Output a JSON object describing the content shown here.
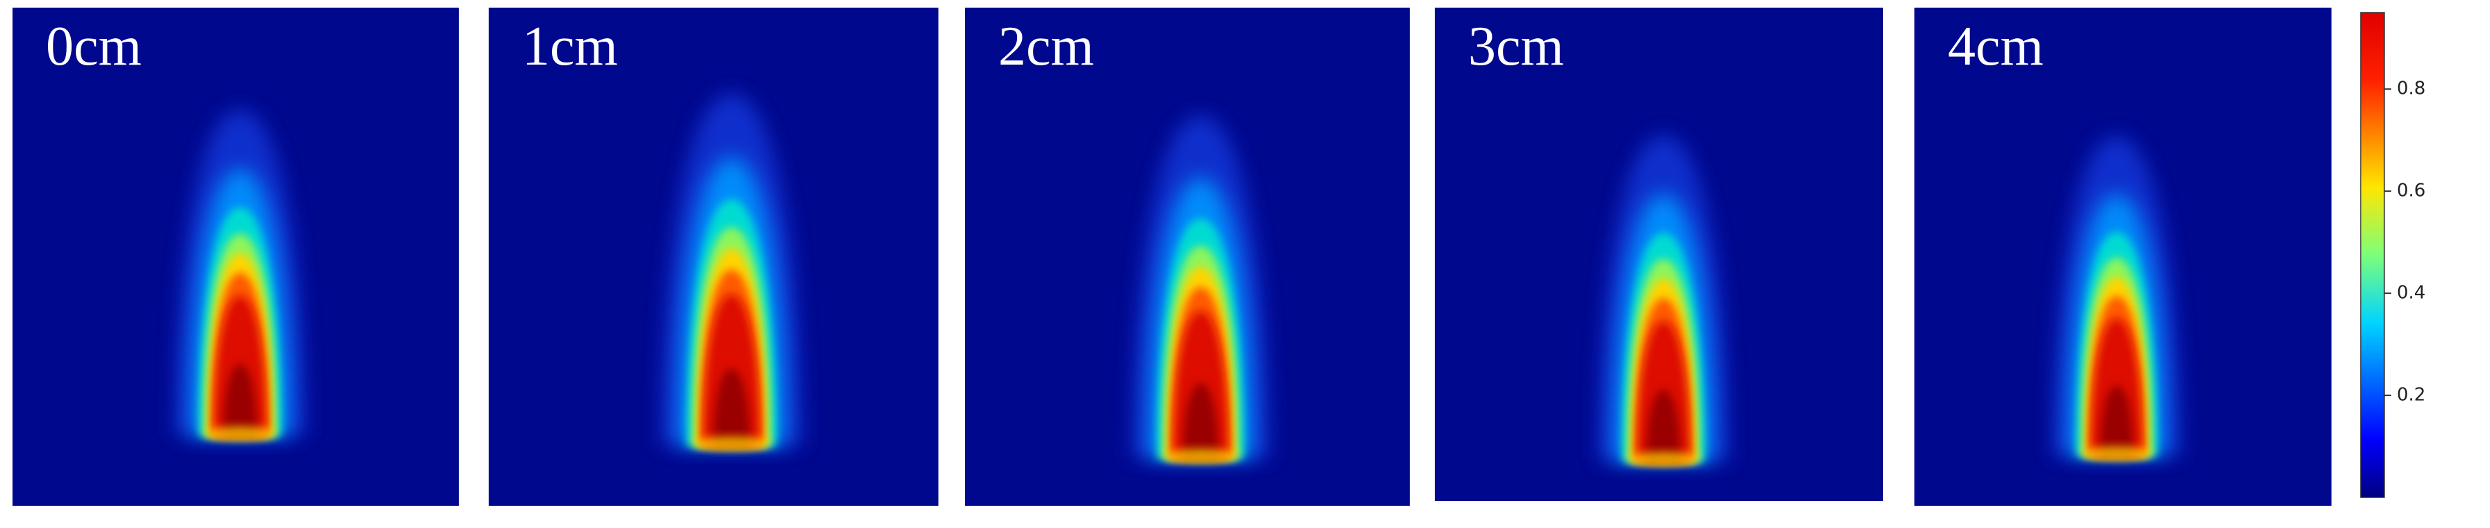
{
  "panels": [
    {
      "label": "0cm"
    },
    {
      "label": "1cm"
    },
    {
      "label": "2cm"
    },
    {
      "label": "3cm"
    },
    {
      "label": "4cm"
    }
  ],
  "colorbar": {
    "lim": [
      0,
      0.95
    ],
    "ticks": [
      0.2,
      0.4,
      0.6,
      0.8
    ]
  }
}
